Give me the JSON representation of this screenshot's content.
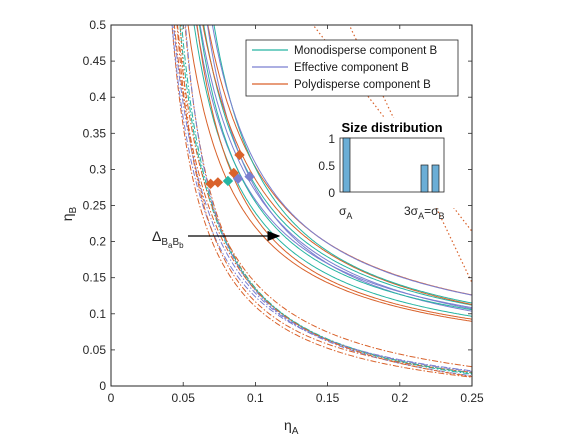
{
  "chart_data": {
    "type": "line",
    "xlabel": "η",
    "xlabel_sub": "A",
    "ylabel": "η",
    "ylabel_sub": "B",
    "xlim": [
      0,
      0.25
    ],
    "ylim": [
      0,
      0.5
    ],
    "xticks": [
      "0",
      "0.05",
      "0.1",
      "0.15",
      "0.2",
      "0.25"
    ],
    "yticks": [
      "0",
      "0.05",
      "0.1",
      "0.15",
      "0.2",
      "0.25",
      "0.3",
      "0.35",
      "0.4",
      "0.45",
      "0.5"
    ],
    "legend_position": "top-right",
    "series": [
      {
        "name": "Monodisperse component B",
        "color": "#26b5a2"
      },
      {
        "name": "Effective component B",
        "color": "#7b7fd0"
      },
      {
        "name": "Polydisperse component B",
        "color": "#d9622b"
      }
    ],
    "markers": [
      {
        "x": 0.069,
        "y": 0.28,
        "color": "#d9622b"
      },
      {
        "x": 0.074,
        "y": 0.282,
        "color": "#d9622b"
      },
      {
        "x": 0.081,
        "y": 0.284,
        "color": "#26b5a2"
      },
      {
        "x": 0.085,
        "y": 0.295,
        "color": "#d9622b"
      },
      {
        "x": 0.088,
        "y": 0.287,
        "color": "#7b7fd0"
      },
      {
        "x": 0.089,
        "y": 0.32,
        "color": "#d9622b"
      },
      {
        "x": 0.096,
        "y": 0.29,
        "color": "#7b7fd0"
      }
    ],
    "annotation": {
      "text": "Δ",
      "sub1": "B",
      "sub2": "a",
      "sub3": "B",
      "sub4": "b"
    },
    "inset": {
      "title": "Size distribution",
      "yticks": [
        "0",
        "0.5",
        "1"
      ],
      "ylim": [
        0,
        1
      ],
      "bars": [
        {
          "label": "σA",
          "value": 1.0
        },
        {
          "label": "3σA=σB",
          "value": 0.5
        },
        {
          "label": "",
          "value": 0.5
        }
      ],
      "xtick_left": "σ",
      "xtick_left_sub": "A",
      "xtick_right_a": "3σ",
      "xtick_right_a_sub": "A",
      "xtick_right_eq": "=σ",
      "xtick_right_b_sub": "B"
    }
  }
}
